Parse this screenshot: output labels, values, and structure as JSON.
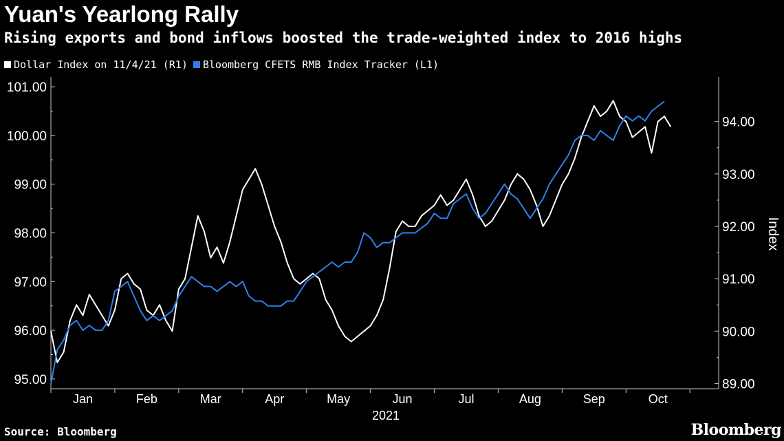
{
  "header": {
    "title": "Yuan's Yearlong Rally",
    "subtitle": "Rising exports and bond inflows boosted the trade-weighted index to 2016 highs"
  },
  "footer": {
    "source": "Source: Bloomberg",
    "brand": "Bloomberg"
  },
  "chart_data": {
    "type": "line",
    "xlabel": "2021",
    "x_ticks": [
      "Jan",
      "Feb",
      "Mar",
      "Apr",
      "May",
      "Jun",
      "Jul",
      "Aug",
      "Sep",
      "Oct"
    ],
    "x_range_months": [
      0,
      10.45
    ],
    "left_axis": {
      "ylim": [
        94.8,
        101.2
      ],
      "ticks": [
        95.0,
        96.0,
        97.0,
        98.0,
        99.0,
        100.0,
        101.0
      ],
      "label": ""
    },
    "right_axis": {
      "ylim": [
        88.9,
        94.85
      ],
      "ticks": [
        89.0,
        90.0,
        91.0,
        92.0,
        93.0,
        94.0
      ],
      "label": "Index"
    },
    "legend_position": "top-left",
    "grid": false,
    "series": [
      {
        "name": "Dollar Index on 11/4/21 (R1)",
        "axis": "right",
        "color": "#ffffff",
        "points": [
          [
            0.0,
            90.0
          ],
          [
            0.1,
            89.4
          ],
          [
            0.2,
            89.6
          ],
          [
            0.3,
            90.2
          ],
          [
            0.4,
            90.5
          ],
          [
            0.5,
            90.3
          ],
          [
            0.6,
            90.7
          ],
          [
            0.7,
            90.5
          ],
          [
            0.8,
            90.3
          ],
          [
            0.9,
            90.1
          ],
          [
            1.0,
            90.4
          ],
          [
            1.1,
            91.0
          ],
          [
            1.2,
            91.1
          ],
          [
            1.3,
            90.9
          ],
          [
            1.4,
            90.8
          ],
          [
            1.5,
            90.4
          ],
          [
            1.6,
            90.3
          ],
          [
            1.7,
            90.5
          ],
          [
            1.8,
            90.2
          ],
          [
            1.9,
            90.0
          ],
          [
            2.0,
            90.8
          ],
          [
            2.1,
            91.0
          ],
          [
            2.2,
            91.6
          ],
          [
            2.3,
            92.2
          ],
          [
            2.4,
            91.9
          ],
          [
            2.5,
            91.4
          ],
          [
            2.6,
            91.6
          ],
          [
            2.7,
            91.3
          ],
          [
            2.8,
            91.7
          ],
          [
            2.9,
            92.2
          ],
          [
            3.0,
            92.7
          ],
          [
            3.1,
            92.9
          ],
          [
            3.2,
            93.1
          ],
          [
            3.3,
            92.8
          ],
          [
            3.4,
            92.4
          ],
          [
            3.5,
            92.0
          ],
          [
            3.6,
            91.7
          ],
          [
            3.7,
            91.3
          ],
          [
            3.8,
            91.0
          ],
          [
            3.9,
            90.9
          ],
          [
            4.0,
            91.0
          ],
          [
            4.1,
            91.1
          ],
          [
            4.2,
            91.0
          ],
          [
            4.3,
            90.6
          ],
          [
            4.4,
            90.4
          ],
          [
            4.5,
            90.1
          ],
          [
            4.6,
            89.9
          ],
          [
            4.7,
            89.8
          ],
          [
            4.8,
            89.9
          ],
          [
            4.9,
            90.0
          ],
          [
            5.0,
            90.1
          ],
          [
            5.1,
            90.3
          ],
          [
            5.2,
            90.6
          ],
          [
            5.3,
            91.2
          ],
          [
            5.4,
            91.9
          ],
          [
            5.5,
            92.1
          ],
          [
            5.6,
            92.0
          ],
          [
            5.7,
            92.0
          ],
          [
            5.8,
            92.2
          ],
          [
            5.9,
            92.3
          ],
          [
            6.0,
            92.4
          ],
          [
            6.1,
            92.6
          ],
          [
            6.2,
            92.4
          ],
          [
            6.3,
            92.5
          ],
          [
            6.4,
            92.7
          ],
          [
            6.5,
            92.9
          ],
          [
            6.6,
            92.6
          ],
          [
            6.7,
            92.2
          ],
          [
            6.8,
            92.0
          ],
          [
            6.9,
            92.1
          ],
          [
            7.0,
            92.3
          ],
          [
            7.1,
            92.5
          ],
          [
            7.2,
            92.8
          ],
          [
            7.3,
            93.0
          ],
          [
            7.4,
            92.9
          ],
          [
            7.5,
            92.7
          ],
          [
            7.6,
            92.4
          ],
          [
            7.7,
            92.0
          ],
          [
            7.8,
            92.2
          ],
          [
            7.9,
            92.5
          ],
          [
            8.0,
            92.8
          ],
          [
            8.1,
            93.0
          ],
          [
            8.2,
            93.3
          ],
          [
            8.3,
            93.7
          ],
          [
            8.4,
            94.0
          ],
          [
            8.5,
            94.3
          ],
          [
            8.6,
            94.1
          ],
          [
            8.7,
            94.2
          ],
          [
            8.8,
            94.4
          ],
          [
            8.9,
            94.1
          ],
          [
            9.0,
            94.0
          ],
          [
            9.1,
            93.7
          ],
          [
            9.2,
            93.8
          ],
          [
            9.3,
            93.9
          ],
          [
            9.4,
            93.4
          ],
          [
            9.5,
            94.0
          ],
          [
            9.6,
            94.1
          ],
          [
            9.7,
            93.9
          ]
        ]
      },
      {
        "name": "Bloomberg CFETS RMB Index Tracker (L1)",
        "axis": "left",
        "color": "#2f80ed",
        "points": [
          [
            0.0,
            94.9
          ],
          [
            0.1,
            95.6
          ],
          [
            0.2,
            95.8
          ],
          [
            0.3,
            96.1
          ],
          [
            0.4,
            96.2
          ],
          [
            0.5,
            96.0
          ],
          [
            0.6,
            96.1
          ],
          [
            0.7,
            96.0
          ],
          [
            0.8,
            96.0
          ],
          [
            0.9,
            96.2
          ],
          [
            1.0,
            96.8
          ],
          [
            1.1,
            96.9
          ],
          [
            1.2,
            97.0
          ],
          [
            1.3,
            96.7
          ],
          [
            1.4,
            96.4
          ],
          [
            1.5,
            96.2
          ],
          [
            1.6,
            96.3
          ],
          [
            1.7,
            96.2
          ],
          [
            1.8,
            96.3
          ],
          [
            1.9,
            96.4
          ],
          [
            2.0,
            96.7
          ],
          [
            2.1,
            96.9
          ],
          [
            2.2,
            97.1
          ],
          [
            2.3,
            97.0
          ],
          [
            2.4,
            96.9
          ],
          [
            2.5,
            96.9
          ],
          [
            2.6,
            96.8
          ],
          [
            2.7,
            96.9
          ],
          [
            2.8,
            97.0
          ],
          [
            2.9,
            96.9
          ],
          [
            3.0,
            97.0
          ],
          [
            3.1,
            96.7
          ],
          [
            3.2,
            96.6
          ],
          [
            3.3,
            96.6
          ],
          [
            3.4,
            96.5
          ],
          [
            3.5,
            96.5
          ],
          [
            3.6,
            96.5
          ],
          [
            3.7,
            96.6
          ],
          [
            3.8,
            96.6
          ],
          [
            3.9,
            96.8
          ],
          [
            4.0,
            97.0
          ],
          [
            4.1,
            97.1
          ],
          [
            4.2,
            97.2
          ],
          [
            4.3,
            97.3
          ],
          [
            4.4,
            97.4
          ],
          [
            4.5,
            97.3
          ],
          [
            4.6,
            97.4
          ],
          [
            4.7,
            97.4
          ],
          [
            4.8,
            97.6
          ],
          [
            4.9,
            98.0
          ],
          [
            5.0,
            97.9
          ],
          [
            5.1,
            97.7
          ],
          [
            5.2,
            97.8
          ],
          [
            5.3,
            97.8
          ],
          [
            5.4,
            97.9
          ],
          [
            5.5,
            98.0
          ],
          [
            5.6,
            98.0
          ],
          [
            5.7,
            98.0
          ],
          [
            5.8,
            98.1
          ],
          [
            5.9,
            98.2
          ],
          [
            6.0,
            98.4
          ],
          [
            6.1,
            98.3
          ],
          [
            6.2,
            98.3
          ],
          [
            6.3,
            98.6
          ],
          [
            6.4,
            98.7
          ],
          [
            6.5,
            98.8
          ],
          [
            6.6,
            98.5
          ],
          [
            6.7,
            98.3
          ],
          [
            6.8,
            98.4
          ],
          [
            6.9,
            98.6
          ],
          [
            7.0,
            98.8
          ],
          [
            7.1,
            99.0
          ],
          [
            7.2,
            98.8
          ],
          [
            7.3,
            98.7
          ],
          [
            7.4,
            98.5
          ],
          [
            7.5,
            98.3
          ],
          [
            7.6,
            98.5
          ],
          [
            7.7,
            98.7
          ],
          [
            7.8,
            99.0
          ],
          [
            7.9,
            99.2
          ],
          [
            8.0,
            99.4
          ],
          [
            8.1,
            99.6
          ],
          [
            8.2,
            99.9
          ],
          [
            8.3,
            100.0
          ],
          [
            8.4,
            100.0
          ],
          [
            8.5,
            99.9
          ],
          [
            8.6,
            100.1
          ],
          [
            8.7,
            100.0
          ],
          [
            8.8,
            99.9
          ],
          [
            8.9,
            100.2
          ],
          [
            9.0,
            100.4
          ],
          [
            9.1,
            100.3
          ],
          [
            9.2,
            100.4
          ],
          [
            9.3,
            100.3
          ],
          [
            9.4,
            100.5
          ],
          [
            9.5,
            100.6
          ],
          [
            9.6,
            100.7
          ]
        ]
      }
    ]
  }
}
